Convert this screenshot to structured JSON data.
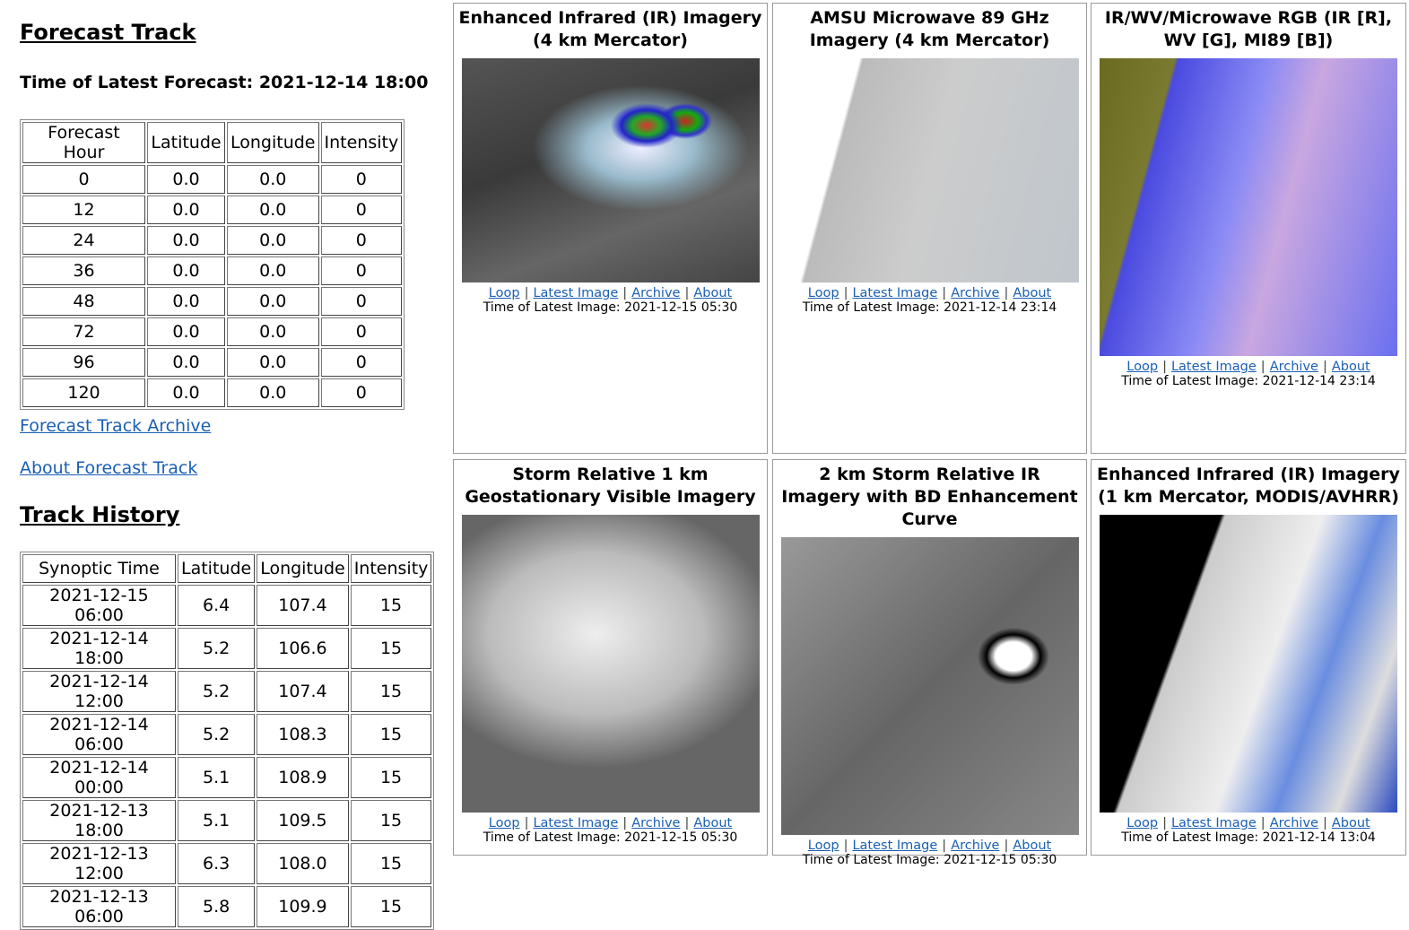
{
  "forecast": {
    "title": "Forecast Track",
    "latest": "Time of Latest Forecast: 2021-12-14 18:00",
    "headers": [
      "Forecast Hour",
      "Latitude",
      "Longitude",
      "Intensity"
    ],
    "rows": [
      [
        "0",
        "0.0",
        "0.0",
        "0"
      ],
      [
        "12",
        "0.0",
        "0.0",
        "0"
      ],
      [
        "24",
        "0.0",
        "0.0",
        "0"
      ],
      [
        "36",
        "0.0",
        "0.0",
        "0"
      ],
      [
        "48",
        "0.0",
        "0.0",
        "0"
      ],
      [
        "72",
        "0.0",
        "0.0",
        "0"
      ],
      [
        "96",
        "0.0",
        "0.0",
        "0"
      ],
      [
        "120",
        "0.0",
        "0.0",
        "0"
      ]
    ]
  },
  "links": [
    "Forecast Track Archive",
    "About Forecast Track"
  ],
  "history": {
    "title": "Track History",
    "headers": [
      "Synoptic Time",
      "Latitude",
      "Longitude",
      "Intensity"
    ],
    "rows": [
      [
        "2021-12-15 06:00",
        "6.4",
        "107.4",
        "15"
      ],
      [
        "2021-12-14 18:00",
        "5.2",
        "106.6",
        "15"
      ],
      [
        "2021-12-14 12:00",
        "5.2",
        "107.4",
        "15"
      ],
      [
        "2021-12-14 06:00",
        "5.2",
        "108.3",
        "15"
      ],
      [
        "2021-12-14 00:00",
        "5.1",
        "108.9",
        "15"
      ],
      [
        "2021-12-13 18:00",
        "5.1",
        "109.5",
        "15"
      ],
      [
        "2021-12-13 12:00",
        "6.3",
        "108.0",
        "15"
      ],
      [
        "2021-12-13 06:00",
        "5.8",
        "109.9",
        "15"
      ]
    ]
  },
  "separator": "|",
  "panels": [
    {
      "title": "Enhanced Infrared (IR) Imagery (4 km Mercator)",
      "links": [
        "Loop",
        "Latest Image",
        "Archive",
        "About"
      ],
      "time": "Time of Latest Image: 2021-12-15 05:30"
    },
    {
      "title": "AMSU Microwave 89 GHz Imagery (4 km Mercator)",
      "links": [
        "Loop",
        "Latest Image",
        "Archive",
        "About"
      ],
      "time": "Time of Latest Image: 2021-12-14 23:14"
    },
    {
      "title": "IR/WV/Microwave RGB (IR [R], WV [G], MI89 [B])",
      "links": [
        "Loop",
        "Latest Image",
        "Archive",
        "About"
      ],
      "time": "Time of Latest Image: 2021-12-14 23:14"
    },
    {
      "title": "Storm Relative 1 km Geostationary Visible Imagery",
      "links": [
        "Loop",
        "Latest Image",
        "Archive",
        "About"
      ],
      "time": "Time of Latest Image: 2021-12-15 05:30"
    },
    {
      "title": "2 km Storm Relative IR Imagery with BD Enhancement Curve",
      "links": [
        "Loop",
        "Latest Image",
        "Archive",
        "About"
      ],
      "time": "Time of Latest Image: 2021-12-15 05:30"
    },
    {
      "title": "Enhanced Infrared (IR) Imagery (1 km Mercator, MODIS/AVHRR)",
      "links": [
        "Loop",
        "Latest Image",
        "Archive",
        "About"
      ],
      "time": "Time of Latest Image: 2021-12-14 13:04"
    }
  ]
}
